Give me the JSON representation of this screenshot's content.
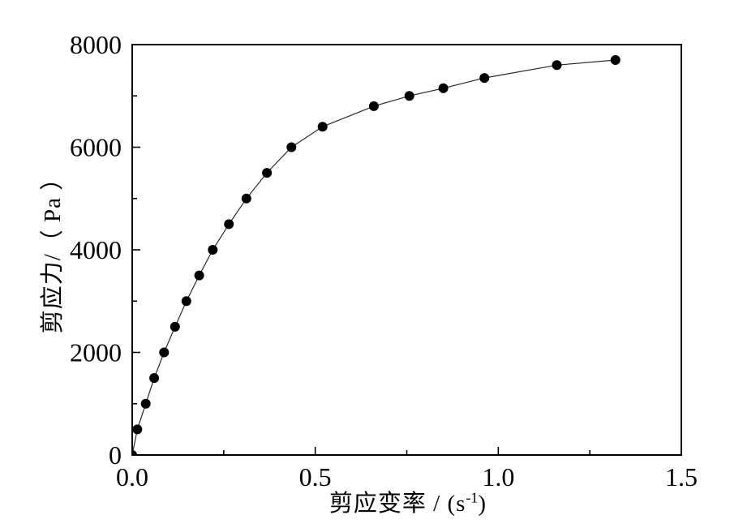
{
  "page": {
    "background": "#ffffff"
  },
  "colors": {
    "axis": "#000000",
    "text": "#000000",
    "marker": "#000000",
    "line": "#2a2a2a"
  },
  "chart_data": {
    "type": "line",
    "title": "",
    "xlabel_prefix": "剪应变率 / (s",
    "xlabel_superscript": "-1",
    "xlabel_suffix": ")",
    "ylabel": "剪应力/（ Pa ）",
    "xlim": [
      0,
      1.5
    ],
    "ylim": [
      0,
      8000
    ],
    "x_major_ticks": [
      0,
      0.5,
      1.0,
      1.5
    ],
    "x_tick_labels": [
      "0.0",
      "0.5",
      "1.0",
      "1.5"
    ],
    "x_minor_ticks": [
      0.25,
      0.75,
      1.25
    ],
    "y_major_ticks": [
      0,
      2000,
      4000,
      6000,
      8000
    ],
    "y_tick_labels": [
      "0",
      "2000",
      "4000",
      "6000",
      "8000"
    ],
    "y_minor_ticks": [
      1000,
      3000,
      5000,
      7000
    ],
    "grid": false,
    "legend": null,
    "series": [
      {
        "name": "shear-stress-vs-shear-rate",
        "marker": "filled-circle",
        "marker_radius": 6,
        "marker_color": "#000000",
        "line_color": "#2a2a2a",
        "points": [
          [
            0.0,
            0
          ],
          [
            0.014,
            500
          ],
          [
            0.037,
            1000
          ],
          [
            0.06,
            1500
          ],
          [
            0.087,
            2000
          ],
          [
            0.117,
            2500
          ],
          [
            0.148,
            3000
          ],
          [
            0.183,
            3500
          ],
          [
            0.22,
            4000
          ],
          [
            0.264,
            4500
          ],
          [
            0.312,
            5000
          ],
          [
            0.368,
            5500
          ],
          [
            0.435,
            6000
          ],
          [
            0.52,
            6400
          ],
          [
            0.66,
            6800
          ],
          [
            0.757,
            7000
          ],
          [
            0.85,
            7150
          ],
          [
            0.962,
            7350
          ],
          [
            1.16,
            7600
          ],
          [
            1.32,
            7700
          ]
        ]
      }
    ]
  }
}
